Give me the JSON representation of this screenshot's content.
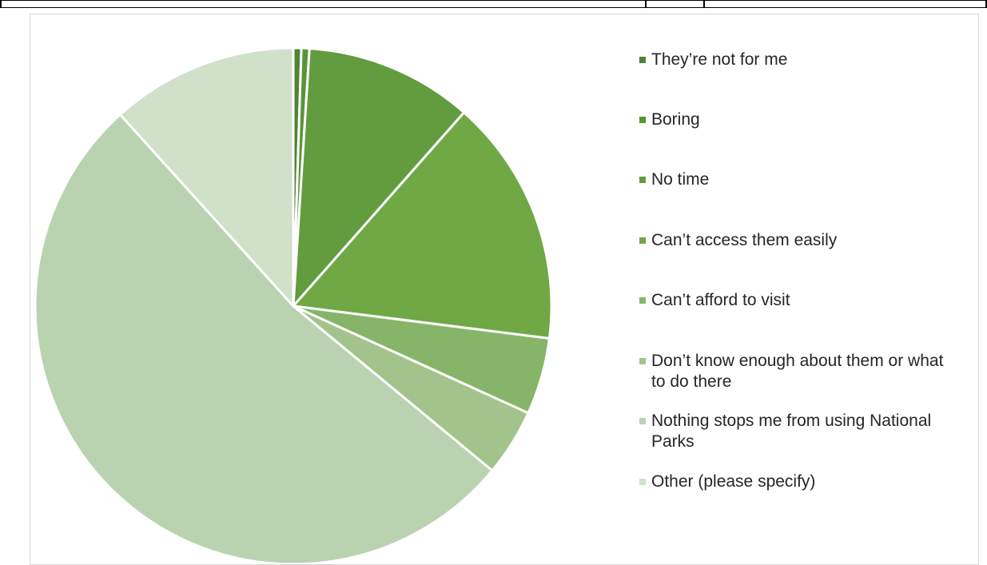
{
  "chart_data": {
    "type": "pie",
    "categories": [
      "They’re not for me",
      "Boring",
      "No time",
      "Can’t access them easily",
      "Can’t afford to visit",
      "Don’t know enough about them or what to do there",
      "Nothing stops me from using National Parks",
      "Other (please specify)"
    ],
    "values": [
      0.5,
      0.5,
      10.5,
      15.5,
      4.8,
      4.2,
      52.3,
      11.7
    ],
    "colors": [
      "#4f8434",
      "#5a9438",
      "#629c3e",
      "#70a845",
      "#86b56a",
      "#a2c48c",
      "#b9d3b0",
      "#d0e0c9"
    ],
    "legend_position": "right",
    "title": ""
  }
}
